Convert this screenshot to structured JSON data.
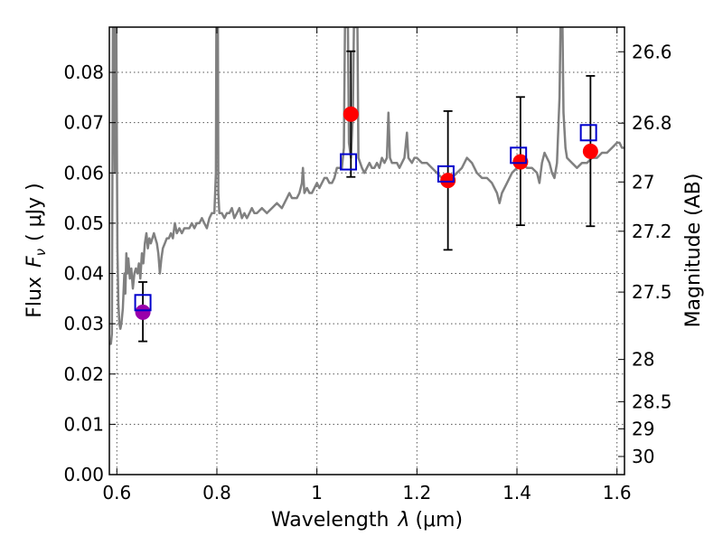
{
  "chart_data": {
    "type": "scatter",
    "xlabel": "Wavelength",
    "xlabel_symbol": "λ",
    "xlabel_unit": "(μm)",
    "ylabel": "Flux",
    "ylabel_symbol": "F",
    "ylabel_subscript": "ν",
    "ylabel_unit": "( μJy )",
    "y2label": "Magnitude (AB)",
    "xlim": [
      0.585,
      1.615
    ],
    "ylim": [
      0.0,
      0.089
    ],
    "grid": true,
    "grid_style": "dotted",
    "x_ticks": [
      0.6,
      0.8,
      1.0,
      1.2,
      1.4,
      1.6
    ],
    "x_tick_labels": [
      "0.6",
      "0.8",
      "1",
      "1.2",
      "1.4",
      "1.6"
    ],
    "y_ticks": [
      0.0,
      0.01,
      0.02,
      0.03,
      0.04,
      0.05,
      0.06,
      0.07,
      0.08
    ],
    "y_tick_labels": [
      "0.00",
      "0.01",
      "0.02",
      "0.03",
      "0.04",
      "0.05",
      "0.06",
      "0.07",
      "0.08"
    ],
    "y2_ticks": [
      {
        "label": "26.6",
        "flux": 0.0841
      },
      {
        "label": "26.8",
        "flux": 0.0699
      },
      {
        "label": "27",
        "flux": 0.0582
      },
      {
        "label": "27.2",
        "flux": 0.0484
      },
      {
        "label": "27.5",
        "flux": 0.0363
      },
      {
        "label": "28",
        "flux": 0.0229
      },
      {
        "label": "28.5",
        "flux": 0.0145
      },
      {
        "label": "29",
        "flux": 0.0091
      },
      {
        "label": "30",
        "flux": 0.0036
      }
    ],
    "series": [
      {
        "kind": "line",
        "color": "#808080",
        "points": [
          [
            0.585,
            0.026
          ],
          [
            0.588,
            0.026
          ],
          [
            0.59,
            0.028
          ],
          [
            0.592,
            0.089
          ],
          [
            0.594,
            0.089
          ],
          [
            0.596,
            0.06
          ],
          [
            0.597,
            0.089
          ],
          [
            0.599,
            0.089
          ],
          [
            0.601,
            0.045
          ],
          [
            0.603,
            0.034
          ],
          [
            0.605,
            0.03
          ],
          [
            0.607,
            0.029
          ],
          [
            0.609,
            0.03
          ],
          [
            0.612,
            0.033
          ],
          [
            0.615,
            0.04
          ],
          [
            0.617,
            0.036
          ],
          [
            0.619,
            0.044
          ],
          [
            0.621,
            0.04
          ],
          [
            0.623,
            0.043
          ],
          [
            0.626,
            0.039
          ],
          [
            0.629,
            0.041
          ],
          [
            0.632,
            0.037
          ],
          [
            0.635,
            0.04
          ],
          [
            0.638,
            0.041
          ],
          [
            0.641,
            0.04
          ],
          [
            0.644,
            0.042
          ],
          [
            0.647,
            0.039
          ],
          [
            0.65,
            0.044
          ],
          [
            0.653,
            0.042
          ],
          [
            0.656,
            0.046
          ],
          [
            0.659,
            0.048
          ],
          [
            0.662,
            0.045
          ],
          [
            0.665,
            0.047
          ],
          [
            0.668,
            0.046
          ],
          [
            0.671,
            0.047
          ],
          [
            0.674,
            0.048
          ],
          [
            0.677,
            0.047
          ],
          [
            0.68,
            0.046
          ],
          [
            0.683,
            0.044
          ],
          [
            0.686,
            0.04
          ],
          [
            0.689,
            0.043
          ],
          [
            0.692,
            0.045
          ],
          [
            0.696,
            0.046
          ],
          [
            0.7,
            0.047
          ],
          [
            0.704,
            0.047
          ],
          [
            0.708,
            0.048
          ],
          [
            0.712,
            0.047
          ],
          [
            0.716,
            0.05
          ],
          [
            0.72,
            0.048
          ],
          [
            0.725,
            0.049
          ],
          [
            0.73,
            0.048
          ],
          [
            0.735,
            0.049
          ],
          [
            0.74,
            0.049
          ],
          [
            0.745,
            0.049
          ],
          [
            0.75,
            0.05
          ],
          [
            0.755,
            0.049
          ],
          [
            0.76,
            0.05
          ],
          [
            0.765,
            0.05
          ],
          [
            0.77,
            0.051
          ],
          [
            0.775,
            0.05
          ],
          [
            0.78,
            0.049
          ],
          [
            0.785,
            0.051
          ],
          [
            0.79,
            0.052
          ],
          [
            0.795,
            0.052
          ],
          [
            0.798,
            0.06
          ],
          [
            0.799,
            0.089
          ],
          [
            0.802,
            0.089
          ],
          [
            0.803,
            0.056
          ],
          [
            0.805,
            0.052
          ],
          [
            0.81,
            0.052
          ],
          [
            0.815,
            0.051
          ],
          [
            0.82,
            0.052
          ],
          [
            0.825,
            0.052
          ],
          [
            0.83,
            0.053
          ],
          [
            0.835,
            0.051
          ],
          [
            0.84,
            0.052
          ],
          [
            0.845,
            0.053
          ],
          [
            0.85,
            0.051
          ],
          [
            0.855,
            0.052
          ],
          [
            0.86,
            0.051
          ],
          [
            0.865,
            0.052
          ],
          [
            0.87,
            0.053
          ],
          [
            0.875,
            0.052
          ],
          [
            0.88,
            0.052
          ],
          [
            0.89,
            0.053
          ],
          [
            0.9,
            0.052
          ],
          [
            0.91,
            0.053
          ],
          [
            0.92,
            0.054
          ],
          [
            0.93,
            0.053
          ],
          [
            0.94,
            0.055
          ],
          [
            0.945,
            0.056
          ],
          [
            0.95,
            0.055
          ],
          [
            0.955,
            0.055
          ],
          [
            0.96,
            0.055
          ],
          [
            0.965,
            0.056
          ],
          [
            0.97,
            0.058
          ],
          [
            0.972,
            0.061
          ],
          [
            0.975,
            0.056
          ],
          [
            0.98,
            0.057
          ],
          [
            0.985,
            0.056
          ],
          [
            0.99,
            0.056
          ],
          [
            0.995,
            0.057
          ],
          [
            1.0,
            0.058
          ],
          [
            1.005,
            0.057
          ],
          [
            1.01,
            0.058
          ],
          [
            1.015,
            0.059
          ],
          [
            1.02,
            0.059
          ],
          [
            1.025,
            0.058
          ],
          [
            1.03,
            0.058
          ],
          [
            1.035,
            0.059
          ],
          [
            1.04,
            0.061
          ],
          [
            1.045,
            0.061
          ],
          [
            1.05,
            0.061
          ],
          [
            1.054,
            0.065
          ],
          [
            1.056,
            0.089
          ],
          [
            1.062,
            0.089
          ],
          [
            1.064,
            0.066
          ],
          [
            1.068,
            0.063
          ],
          [
            1.072,
            0.072
          ],
          [
            1.074,
            0.089
          ],
          [
            1.081,
            0.089
          ],
          [
            1.083,
            0.063
          ],
          [
            1.09,
            0.061
          ],
          [
            1.095,
            0.06
          ],
          [
            1.1,
            0.061
          ],
          [
            1.105,
            0.062
          ],
          [
            1.11,
            0.061
          ],
          [
            1.115,
            0.061
          ],
          [
            1.12,
            0.062
          ],
          [
            1.125,
            0.061
          ],
          [
            1.13,
            0.063
          ],
          [
            1.135,
            0.062
          ],
          [
            1.14,
            0.063
          ],
          [
            1.143,
            0.072
          ],
          [
            1.146,
            0.063
          ],
          [
            1.15,
            0.062
          ],
          [
            1.155,
            0.062
          ],
          [
            1.16,
            0.062
          ],
          [
            1.165,
            0.061
          ],
          [
            1.17,
            0.062
          ],
          [
            1.175,
            0.063
          ],
          [
            1.18,
            0.068
          ],
          [
            1.183,
            0.063
          ],
          [
            1.19,
            0.062
          ],
          [
            1.195,
            0.063
          ],
          [
            1.2,
            0.063
          ],
          [
            1.21,
            0.062
          ],
          [
            1.22,
            0.062
          ],
          [
            1.23,
            0.061
          ],
          [
            1.24,
            0.06
          ],
          [
            1.25,
            0.059
          ],
          [
            1.26,
            0.058
          ],
          [
            1.27,
            0.059
          ],
          [
            1.28,
            0.06
          ],
          [
            1.29,
            0.061
          ],
          [
            1.3,
            0.063
          ],
          [
            1.31,
            0.062
          ],
          [
            1.32,
            0.06
          ],
          [
            1.33,
            0.059
          ],
          [
            1.34,
            0.059
          ],
          [
            1.35,
            0.058
          ],
          [
            1.36,
            0.056
          ],
          [
            1.365,
            0.054
          ],
          [
            1.37,
            0.056
          ],
          [
            1.38,
            0.058
          ],
          [
            1.39,
            0.06
          ],
          [
            1.4,
            0.061
          ],
          [
            1.41,
            0.062
          ],
          [
            1.42,
            0.061
          ],
          [
            1.43,
            0.061
          ],
          [
            1.44,
            0.06
          ],
          [
            1.445,
            0.058
          ],
          [
            1.45,
            0.062
          ],
          [
            1.455,
            0.064
          ],
          [
            1.46,
            0.063
          ],
          [
            1.465,
            0.062
          ],
          [
            1.47,
            0.06
          ],
          [
            1.475,
            0.059
          ],
          [
            1.48,
            0.062
          ],
          [
            1.485,
            0.075
          ],
          [
            1.487,
            0.089
          ],
          [
            1.491,
            0.089
          ],
          [
            1.493,
            0.072
          ],
          [
            1.497,
            0.065
          ],
          [
            1.5,
            0.063
          ],
          [
            1.51,
            0.062
          ],
          [
            1.52,
            0.061
          ],
          [
            1.53,
            0.062
          ],
          [
            1.54,
            0.062
          ],
          [
            1.55,
            0.063
          ],
          [
            1.56,
            0.063
          ],
          [
            1.57,
            0.064
          ],
          [
            1.58,
            0.064
          ],
          [
            1.59,
            0.065
          ],
          [
            1.6,
            0.066
          ],
          [
            1.605,
            0.066
          ],
          [
            1.61,
            0.065
          ],
          [
            1.615,
            0.065
          ]
        ]
      },
      {
        "kind": "errorbar",
        "color": "#000000",
        "points": [
          {
            "x": 0.652,
            "ylo": 0.0265,
            "yhi": 0.0383
          },
          {
            "x": 1.068,
            "ylo": 0.0592,
            "yhi": 0.0842
          },
          {
            "x": 1.262,
            "ylo": 0.0447,
            "yhi": 0.0723
          },
          {
            "x": 1.407,
            "ylo": 0.0496,
            "yhi": 0.0751
          },
          {
            "x": 1.547,
            "ylo": 0.0494,
            "yhi": 0.0793
          }
        ]
      },
      {
        "kind": "scatter",
        "marker": "circle",
        "points": [
          {
            "x": 0.652,
            "y": 0.0323,
            "color": "#9900aa"
          },
          {
            "x": 1.068,
            "y": 0.0717,
            "color": "#ff0000"
          },
          {
            "x": 1.262,
            "y": 0.0585,
            "color": "#ff0000"
          },
          {
            "x": 1.407,
            "y": 0.0622,
            "color": "#ff0000"
          },
          {
            "x": 1.547,
            "y": 0.0643,
            "color": "#ff0000"
          }
        ]
      },
      {
        "kind": "scatter",
        "marker": "open-square",
        "color": "#0000cc",
        "points": [
          {
            "x": 0.652,
            "y": 0.0342
          },
          {
            "x": 1.063,
            "y": 0.0622
          },
          {
            "x": 1.258,
            "y": 0.0598
          },
          {
            "x": 1.403,
            "y": 0.0635
          },
          {
            "x": 1.543,
            "y": 0.068
          }
        ]
      }
    ]
  }
}
